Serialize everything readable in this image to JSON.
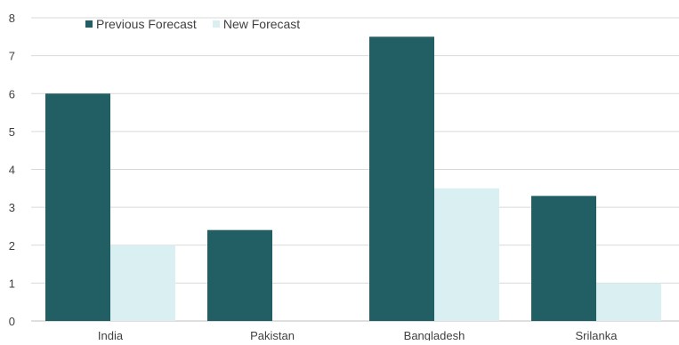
{
  "chart_data": {
    "type": "bar",
    "categories": [
      "India",
      "Pakistan",
      "Bangladesh",
      "Srilanka"
    ],
    "series": [
      {
        "name": "Previous Forecast",
        "values": [
          6.0,
          2.4,
          7.5,
          3.3
        ],
        "color": "#215f64"
      },
      {
        "name": "New Forecast",
        "values": [
          2.0,
          0,
          3.5,
          1.0
        ],
        "color": "#d9eff2"
      }
    ],
    "yticks": [
      "0",
      "1",
      "2",
      "3",
      "4",
      "5",
      "6",
      "7",
      "8"
    ],
    "ylim": [
      0,
      8
    ],
    "grid": true,
    "legend_position": "top-left"
  }
}
